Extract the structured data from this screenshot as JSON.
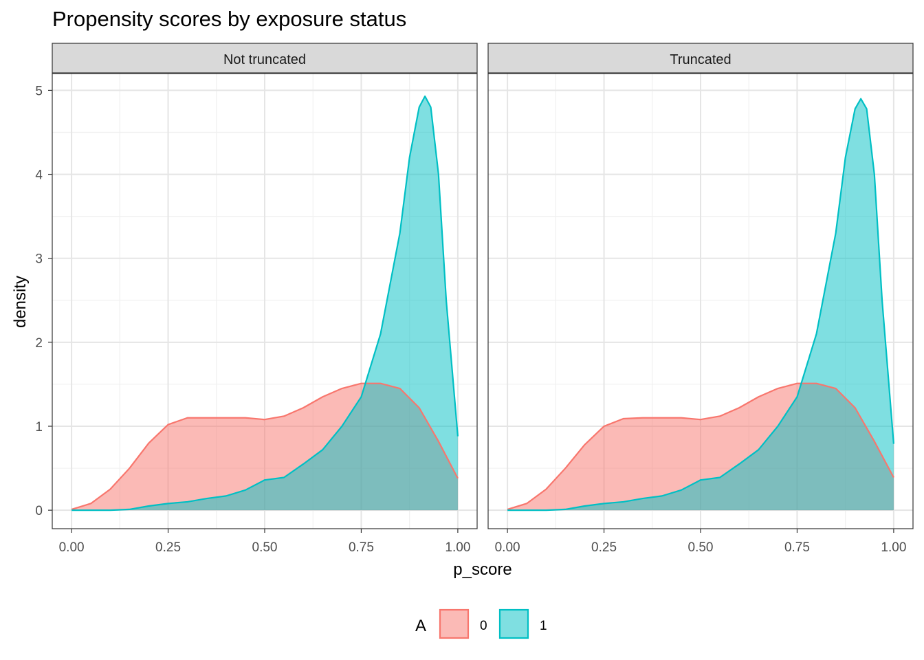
{
  "chart_data": {
    "type": "area",
    "title": "Propensity scores by exposure status",
    "xlabel": "p_score",
    "ylabel": "density",
    "xlim": [
      -0.05,
      1.05
    ],
    "ylim": [
      -0.22,
      5.2
    ],
    "x_ticks": [
      0,
      0.25,
      0.5,
      0.75,
      1
    ],
    "x_tick_labels": [
      "0.00",
      "0.25",
      "0.50",
      "0.75",
      "1.00"
    ],
    "y_ticks": [
      0,
      1,
      2,
      3,
      4,
      5
    ],
    "y_tick_labels": [
      "0",
      "1",
      "2",
      "3",
      "4",
      "5"
    ],
    "grid": true,
    "legend": {
      "title": "A",
      "position": "bottom",
      "entries": [
        {
          "label": "0",
          "color": "#F8766D"
        },
        {
          "label": "1",
          "color": "#00BFC4"
        }
      ]
    },
    "panels": [
      {
        "strip_label": "Not truncated",
        "series": [
          {
            "name": "0",
            "color": "#F8766D",
            "x": [
              0,
              0.05,
              0.1,
              0.15,
              0.2,
              0.25,
              0.3,
              0.35,
              0.4,
              0.45,
              0.5,
              0.55,
              0.6,
              0.65,
              0.7,
              0.75,
              0.8,
              0.85,
              0.9,
              0.95,
              1
            ],
            "y": [
              0.01,
              0.08,
              0.25,
              0.5,
              0.8,
              1.02,
              1.1,
              1.1,
              1.1,
              1.1,
              1.08,
              1.12,
              1.22,
              1.35,
              1.45,
              1.51,
              1.51,
              1.45,
              1.22,
              0.82,
              0.38
            ]
          },
          {
            "name": "1",
            "color": "#00BFC4",
            "x": [
              0,
              0.05,
              0.1,
              0.15,
              0.2,
              0.25,
              0.3,
              0.35,
              0.4,
              0.45,
              0.5,
              0.55,
              0.6,
              0.65,
              0.7,
              0.75,
              0.8,
              0.85,
              0.875,
              0.9,
              0.915,
              0.93,
              0.95,
              0.97,
              1
            ],
            "y": [
              0,
              0,
              0,
              0.01,
              0.05,
              0.08,
              0.1,
              0.14,
              0.17,
              0.24,
              0.36,
              0.39,
              0.55,
              0.72,
              1.0,
              1.35,
              2.1,
              3.3,
              4.2,
              4.8,
              4.93,
              4.8,
              4.0,
              2.5,
              0.88
            ]
          }
        ]
      },
      {
        "strip_label": "Truncated",
        "series": [
          {
            "name": "0",
            "color": "#F8766D",
            "x": [
              0,
              0.05,
              0.1,
              0.15,
              0.2,
              0.25,
              0.3,
              0.35,
              0.4,
              0.45,
              0.5,
              0.55,
              0.6,
              0.65,
              0.7,
              0.75,
              0.8,
              0.85,
              0.9,
              0.95,
              1
            ],
            "y": [
              0.01,
              0.08,
              0.25,
              0.5,
              0.78,
              1.0,
              1.09,
              1.1,
              1.1,
              1.1,
              1.08,
              1.12,
              1.22,
              1.35,
              1.45,
              1.51,
              1.51,
              1.45,
              1.22,
              0.82,
              0.39
            ]
          },
          {
            "name": "1",
            "color": "#00BFC4",
            "x": [
              0,
              0.05,
              0.1,
              0.15,
              0.2,
              0.25,
              0.3,
              0.35,
              0.4,
              0.45,
              0.5,
              0.55,
              0.6,
              0.65,
              0.7,
              0.75,
              0.8,
              0.85,
              0.875,
              0.9,
              0.915,
              0.93,
              0.95,
              0.97,
              1
            ],
            "y": [
              0,
              0,
              0,
              0.01,
              0.05,
              0.08,
              0.1,
              0.14,
              0.17,
              0.24,
              0.36,
              0.39,
              0.55,
              0.72,
              1.0,
              1.35,
              2.1,
              3.3,
              4.2,
              4.78,
              4.9,
              4.78,
              4.0,
              2.5,
              0.79
            ]
          }
        ]
      }
    ]
  }
}
